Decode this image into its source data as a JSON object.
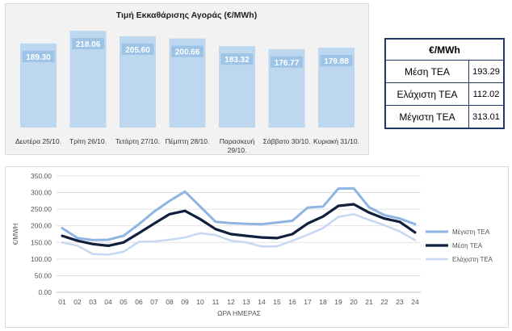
{
  "chart_data": [
    {
      "type": "bar",
      "title": "Τιμή Εκκαθάρισης Αγοράς (€/MWh)",
      "categories": [
        "Δευτέρα 25/10.",
        "Τρίτη 26/10.",
        "Τετάρτη 27/10.",
        "Πέμπτη 28/10.",
        "Παρασκευή 29/10.",
        "Σάββατο 30/10.",
        "Κυριακή 31/10."
      ],
      "category_lines": [
        [
          "Δευτέρα 25/10."
        ],
        [
          "Τρίτη 26/10."
        ],
        [
          "Τετάρτη 27/10."
        ],
        [
          "Πέμπτη 28/10."
        ],
        [
          "Παρασκευή",
          "29/10."
        ],
        [
          "Σάββατο 30/10."
        ],
        [
          "Κυριακή 31/10."
        ]
      ],
      "values": [
        189.3,
        218.06,
        205.6,
        200.66,
        183.32,
        176.77,
        179.88
      ],
      "value_labels": [
        "189.30",
        "218.06",
        "205.60",
        "200.66",
        "183.32",
        "176.77",
        "179.88"
      ],
      "bar_color": "#bdd7ee",
      "label_color": "#9dc3e6"
    },
    {
      "type": "line",
      "xlabel": "ΩΡΑ ΗΜΕΡΑΣ",
      "ylabel": "€/MWH",
      "x": [
        "01",
        "02",
        "03",
        "04",
        "05",
        "06",
        "07",
        "08",
        "09",
        "10",
        "11",
        "12",
        "13",
        "14",
        "15",
        "16",
        "17",
        "18",
        "19",
        "20",
        "21",
        "22",
        "23",
        "24"
      ],
      "ylim": [
        0,
        350
      ],
      "yticks": [
        0,
        50,
        100,
        150,
        200,
        250,
        300,
        350
      ],
      "ytick_labels": [
        "0.00",
        "50.00",
        "100.00",
        "150.00",
        "200.00",
        "250.00",
        "300.00",
        "350.00"
      ],
      "grid": true,
      "legend": "right",
      "series": [
        {
          "name": "Μέγιστη ΤΕΑ",
          "color": "#8eb4e3",
          "values": [
            193,
            163,
            157,
            158,
            170,
            205,
            243,
            275,
            303,
            258,
            212,
            208,
            206,
            205,
            210,
            215,
            255,
            258,
            312,
            313,
            256,
            232,
            222,
            205
          ]
        },
        {
          "name": "Μέση ΤΕΑ",
          "color": "#0f1f3d",
          "values": [
            170,
            155,
            145,
            140,
            150,
            178,
            207,
            235,
            245,
            220,
            190,
            175,
            170,
            165,
            163,
            175,
            207,
            228,
            260,
            265,
            240,
            222,
            212,
            180
          ]
        },
        {
          "name": "Ελάχιστη ΤΕΑ",
          "color": "#c6d9f1",
          "values": [
            150,
            140,
            115,
            113,
            122,
            152,
            153,
            158,
            165,
            178,
            172,
            155,
            150,
            138,
            138,
            155,
            173,
            193,
            227,
            235,
            218,
            202,
            183,
            157
          ]
        }
      ]
    }
  ],
  "stats_table": {
    "header": "€/MWh",
    "rows": [
      {
        "label": "Μέση ΤΕΑ",
        "value": "193.29"
      },
      {
        "label": "Ελάχιστη ΤΕΑ",
        "value": "112.02"
      },
      {
        "label": "Μέγιστη ΤΕΑ",
        "value": "313.01"
      }
    ]
  }
}
